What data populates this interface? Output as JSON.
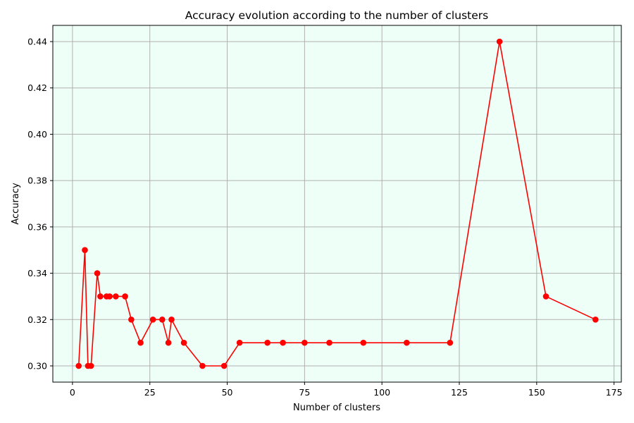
{
  "chart_data": {
    "type": "line",
    "title": "Accuracy evolution according to the number of clusters",
    "xlabel": "Number of clusters",
    "ylabel": "Accuracy",
    "xlim": [
      -6.35,
      177.35
    ],
    "ylim": [
      0.293,
      0.447
    ],
    "xticks": [
      0,
      25,
      50,
      75,
      100,
      125,
      150,
      175
    ],
    "yticks": [
      0.3,
      0.32,
      0.34,
      0.36,
      0.38,
      0.4,
      0.42,
      0.44
    ],
    "xtick_labels": [
      "0",
      "25",
      "50",
      "75",
      "100",
      "125",
      "150",
      "175"
    ],
    "ytick_labels": [
      "0.30",
      "0.32",
      "0.34",
      "0.36",
      "0.38",
      "0.40",
      "0.42",
      "0.44"
    ],
    "grid": true,
    "background_color": "#eefff8",
    "line_color": "#ff0000",
    "marker": "circle",
    "series": [
      {
        "x": [
          2,
          4,
          5,
          6,
          8,
          9,
          11,
          12,
          14,
          17,
          19,
          22,
          26,
          29,
          31,
          32,
          36,
          42,
          49,
          54,
          63,
          68,
          75,
          83,
          94,
          108,
          122,
          138,
          153,
          169
        ],
        "y": [
          0.3,
          0.35,
          0.3,
          0.3,
          0.34,
          0.33,
          0.33,
          0.33,
          0.33,
          0.33,
          0.32,
          0.31,
          0.32,
          0.32,
          0.31,
          0.32,
          0.31,
          0.3,
          0.3,
          0.31,
          0.31,
          0.31,
          0.31,
          0.31,
          0.31,
          0.31,
          0.31,
          0.44,
          0.33,
          0.32
        ]
      }
    ]
  }
}
